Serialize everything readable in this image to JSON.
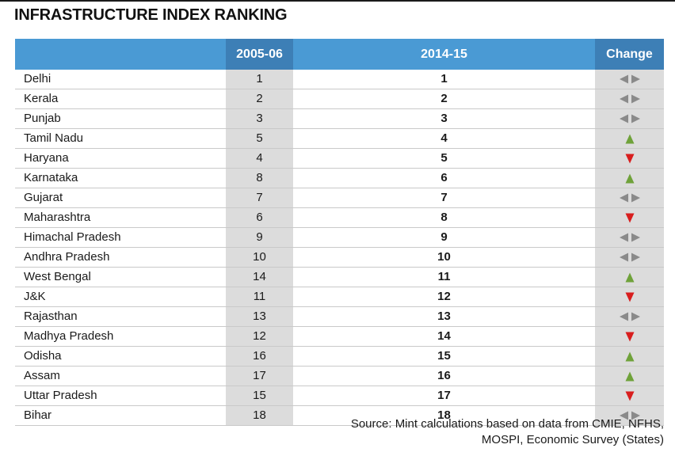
{
  "title": "INFRASTRUCTURE INDEX RANKING",
  "header": {
    "col1": "",
    "col2": "2005-06",
    "col3": "2014-15",
    "col4": "Change"
  },
  "colors": {
    "header_blue": "#4a9ad4",
    "header_dark_blue": "#3d7fb6",
    "up": "#6fa23a",
    "down": "#d81e1e",
    "same": "#8a8a8a",
    "shade": "#dcdcdc"
  },
  "chart_data": {
    "type": "table",
    "title": "INFRASTRUCTURE INDEX RANKING",
    "columns": [
      "",
      "2005-06",
      "2014-15",
      "Change"
    ],
    "rows": [
      {
        "state": "Delhi",
        "r2005": "1",
        "r2014": "1",
        "change": "same"
      },
      {
        "state": "Kerala",
        "r2005": "2",
        "r2014": "2",
        "change": "same"
      },
      {
        "state": "Punjab",
        "r2005": "3",
        "r2014": "3",
        "change": "same"
      },
      {
        "state": "Tamil Nadu",
        "r2005": "5",
        "r2014": "4",
        "change": "up"
      },
      {
        "state": "Haryana",
        "r2005": "4",
        "r2014": "5",
        "change": "down"
      },
      {
        "state": "Karnataka",
        "r2005": "8",
        "r2014": "6",
        "change": "up"
      },
      {
        "state": "Gujarat",
        "r2005": "7",
        "r2014": "7",
        "change": "same"
      },
      {
        "state": "Maharashtra",
        "r2005": "6",
        "r2014": "8",
        "change": "down"
      },
      {
        "state": "Himachal Pradesh",
        "r2005": "9",
        "r2014": "9",
        "change": "same"
      },
      {
        "state": "Andhra Pradesh",
        "r2005": "10",
        "r2014": "10",
        "change": "same"
      },
      {
        "state": "West Bengal",
        "r2005": "14",
        "r2014": "11",
        "change": "up"
      },
      {
        "state": "J&K",
        "r2005": "11",
        "r2014": "12",
        "change": "down"
      },
      {
        "state": "Rajasthan",
        "r2005": "13",
        "r2014": "13",
        "change": "same"
      },
      {
        "state": "Madhya Pradesh",
        "r2005": "12",
        "r2014": "14",
        "change": "down"
      },
      {
        "state": "Odisha",
        "r2005": "16",
        "r2014": "15",
        "change": "up"
      },
      {
        "state": "Assam",
        "r2005": "17",
        "r2014": "16",
        "change": "up"
      },
      {
        "state": "Uttar Pradesh",
        "r2005": "15",
        "r2014": "17",
        "change": "down"
      },
      {
        "state": "Bihar",
        "r2005": "18",
        "r2014": "18",
        "change": "same"
      }
    ]
  },
  "source": {
    "line1": "Source: Mint calculations based on data from CMIE, NFHS,",
    "line2": "MOSPI, Economic Survey (States)"
  }
}
